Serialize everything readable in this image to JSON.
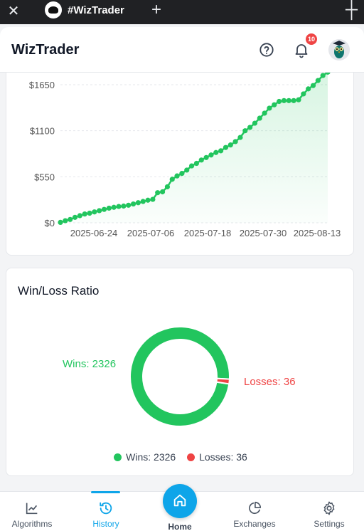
{
  "browser": {
    "close_icon": "close-icon",
    "tab_title": "#WizTrader",
    "new_tab_icon": "plus-icon"
  },
  "header": {
    "brand": "WizTrader",
    "help_icon": "help-circle-icon",
    "bell_icon": "bell-icon",
    "notification_count": "10"
  },
  "equity_chart": {
    "chart_data": {
      "type": "area",
      "y_ticks": [
        "$1650",
        "$1100",
        "$550",
        "$0"
      ],
      "x_ticks": [
        "2025-06-24",
        "2025-07-06",
        "2025-07-18",
        "2025-07-30",
        "2025-08-13"
      ],
      "ylim": [
        0,
        1650
      ],
      "series": [
        {
          "color": "#22c55e",
          "values": [
            5,
            25,
            40,
            65,
            85,
            105,
            115,
            130,
            145,
            160,
            175,
            185,
            195,
            200,
            210,
            225,
            240,
            255,
            270,
            280,
            360,
            370,
            430,
            520,
            560,
            590,
            630,
            680,
            710,
            750,
            780,
            810,
            840,
            860,
            900,
            930,
            970,
            1020,
            1100,
            1140,
            1190,
            1250,
            1310,
            1370,
            1410,
            1450,
            1460,
            1460,
            1460,
            1470,
            1540,
            1600,
            1640,
            1700,
            1760,
            1800
          ]
        }
      ]
    }
  },
  "ratio": {
    "title": "Win/Loss Ratio",
    "wins_label": "Wins: 2326",
    "losses_label": "Losses: 36",
    "chart_data": {
      "type": "pie",
      "categories": [
        "Wins",
        "Losses"
      ],
      "values": [
        2326,
        36
      ],
      "colors": [
        "#22c55e",
        "#ef4444"
      ]
    },
    "legend": [
      {
        "label": "Wins: 2326",
        "color": "#22c55e"
      },
      {
        "label": "Losses: 36",
        "color": "#ef4444"
      }
    ]
  },
  "nav": {
    "items": [
      {
        "label": "Algorithms",
        "icon": "chart-line-icon"
      },
      {
        "label": "History",
        "icon": "history-icon"
      },
      {
        "label": "Home",
        "icon": "home-icon"
      },
      {
        "label": "Exchanges",
        "icon": "pie-chart-icon"
      },
      {
        "label": "Settings",
        "icon": "gear-icon"
      }
    ],
    "active": "History",
    "accent": "#0ea5e9"
  }
}
